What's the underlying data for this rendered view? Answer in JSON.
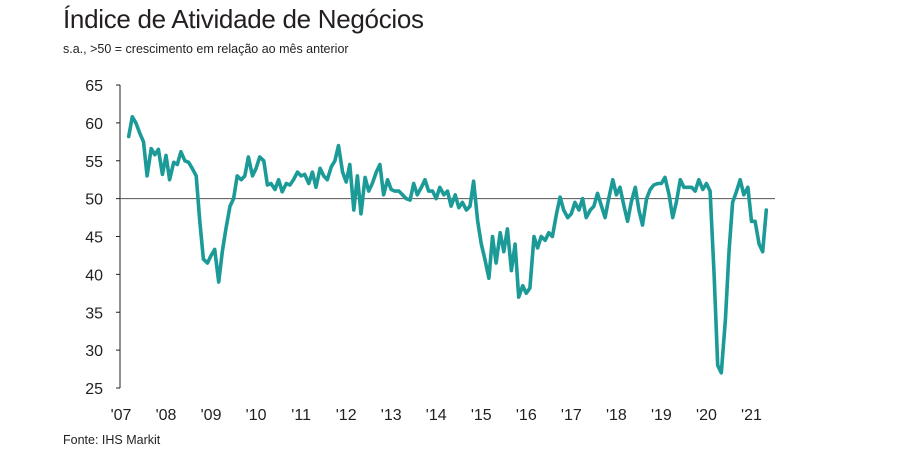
{
  "chart_data": {
    "type": "line",
    "title": "Índice de Atividade de Negócios",
    "subtitle": "s.a., >50 = crescimento em relação ao mês anterior",
    "source": "Fonte: IHS Markit",
    "xlabel": "",
    "ylabel": "",
    "ylim": [
      25,
      65
    ],
    "y_ticks": [
      {
        "value": 25,
        "label": "25"
      },
      {
        "value": 30,
        "label": "30"
      },
      {
        "value": 35,
        "label": "35"
      },
      {
        "value": 40,
        "label": "40"
      },
      {
        "value": 45,
        "label": "45"
      },
      {
        "value": 50,
        "label": "50"
      },
      {
        "value": 55,
        "label": "55"
      },
      {
        "value": 60,
        "label": "60"
      },
      {
        "value": 65,
        "label": "65"
      }
    ],
    "x_ticks": [
      {
        "value": 2007,
        "label": "'07"
      },
      {
        "value": 2008,
        "label": "'08"
      },
      {
        "value": 2009,
        "label": "'09"
      },
      {
        "value": 2010,
        "label": "'10"
      },
      {
        "value": 2011,
        "label": "'11"
      },
      {
        "value": 2012,
        "label": "'12"
      },
      {
        "value": 2013,
        "label": "'13"
      },
      {
        "value": 2014,
        "label": "'14"
      },
      {
        "value": 2015,
        "label": "'15"
      },
      {
        "value": 2016,
        "label": "'16"
      },
      {
        "value": 2017,
        "label": "'17"
      },
      {
        "value": 2018,
        "label": "'18"
      },
      {
        "value": 2019,
        "label": "'19"
      },
      {
        "value": 2020,
        "label": "'20"
      },
      {
        "value": 2021,
        "label": "'21"
      }
    ],
    "reference_line": 50,
    "line_color": "#1b9a97",
    "reference_color": "#555555",
    "series": [
      {
        "values": [
          [
            2007.17,
            58.2
          ],
          [
            2007.25,
            60.8
          ],
          [
            2007.33,
            60.0
          ],
          [
            2007.42,
            58.6
          ],
          [
            2007.5,
            57.5
          ],
          [
            2007.58,
            53.0
          ],
          [
            2007.67,
            56.6
          ],
          [
            2007.75,
            55.8
          ],
          [
            2007.83,
            56.5
          ],
          [
            2007.92,
            53.2
          ],
          [
            2008.0,
            55.7
          ],
          [
            2008.08,
            52.5
          ],
          [
            2008.17,
            54.8
          ],
          [
            2008.25,
            54.5
          ],
          [
            2008.33,
            56.2
          ],
          [
            2008.42,
            55.0
          ],
          [
            2008.5,
            54.8
          ],
          [
            2008.58,
            54.0
          ],
          [
            2008.67,
            53.0
          ],
          [
            2008.75,
            47.0
          ],
          [
            2008.83,
            42.0
          ],
          [
            2008.92,
            41.5
          ],
          [
            2009.0,
            42.5
          ],
          [
            2009.08,
            43.3
          ],
          [
            2009.17,
            39.0
          ],
          [
            2009.25,
            43.0
          ],
          [
            2009.33,
            46.0
          ],
          [
            2009.42,
            49.0
          ],
          [
            2009.5,
            50.0
          ],
          [
            2009.58,
            53.0
          ],
          [
            2009.67,
            52.5
          ],
          [
            2009.75,
            53.0
          ],
          [
            2009.83,
            55.5
          ],
          [
            2009.92,
            53.0
          ],
          [
            2010.0,
            54.0
          ],
          [
            2010.08,
            55.5
          ],
          [
            2010.17,
            55.0
          ],
          [
            2010.25,
            51.8
          ],
          [
            2010.33,
            52.0
          ],
          [
            2010.42,
            51.2
          ],
          [
            2010.5,
            52.5
          ],
          [
            2010.58,
            50.9
          ],
          [
            2010.67,
            52.0
          ],
          [
            2010.75,
            51.8
          ],
          [
            2010.83,
            52.5
          ],
          [
            2010.92,
            53.5
          ],
          [
            2011.0,
            53.0
          ],
          [
            2011.08,
            53.2
          ],
          [
            2011.17,
            52.0
          ],
          [
            2011.25,
            53.5
          ],
          [
            2011.33,
            51.5
          ],
          [
            2011.42,
            54.0
          ],
          [
            2011.5,
            53.0
          ],
          [
            2011.58,
            52.5
          ],
          [
            2011.67,
            54.2
          ],
          [
            2011.75,
            55.0
          ],
          [
            2011.83,
            57.0
          ],
          [
            2011.92,
            53.5
          ],
          [
            2012.0,
            52.2
          ],
          [
            2012.08,
            54.5
          ],
          [
            2012.17,
            48.5
          ],
          [
            2012.25,
            53.0
          ],
          [
            2012.33,
            48.0
          ],
          [
            2012.42,
            52.8
          ],
          [
            2012.5,
            51.0
          ],
          [
            2012.58,
            52.0
          ],
          [
            2012.67,
            53.5
          ],
          [
            2012.75,
            54.5
          ],
          [
            2012.83,
            50.5
          ],
          [
            2012.92,
            52.5
          ],
          [
            2013.0,
            51.2
          ],
          [
            2013.08,
            51.0
          ],
          [
            2013.17,
            51.0
          ],
          [
            2013.25,
            50.5
          ],
          [
            2013.33,
            50.0
          ],
          [
            2013.42,
            49.8
          ],
          [
            2013.5,
            52.0
          ],
          [
            2013.58,
            50.5
          ],
          [
            2013.67,
            51.5
          ],
          [
            2013.75,
            52.5
          ],
          [
            2013.83,
            51.0
          ],
          [
            2013.92,
            51.0
          ],
          [
            2014.0,
            50.0
          ],
          [
            2014.08,
            51.5
          ],
          [
            2014.17,
            50.5
          ],
          [
            2014.25,
            51.0
          ],
          [
            2014.33,
            49.0
          ],
          [
            2014.42,
            50.5
          ],
          [
            2014.5,
            48.8
          ],
          [
            2014.58,
            49.5
          ],
          [
            2014.67,
            48.5
          ],
          [
            2014.75,
            49.0
          ],
          [
            2014.83,
            52.3
          ],
          [
            2014.92,
            47.0
          ],
          [
            2015.0,
            44.0
          ],
          [
            2015.08,
            42.0
          ],
          [
            2015.17,
            39.5
          ],
          [
            2015.25,
            45.0
          ],
          [
            2015.33,
            41.5
          ],
          [
            2015.42,
            45.5
          ],
          [
            2015.5,
            43.0
          ],
          [
            2015.58,
            46.0
          ],
          [
            2015.67,
            40.5
          ],
          [
            2015.75,
            44.0
          ],
          [
            2015.83,
            37.0
          ],
          [
            2015.92,
            38.5
          ],
          [
            2016.0,
            37.5
          ],
          [
            2016.08,
            38.2
          ],
          [
            2016.17,
            45.0
          ],
          [
            2016.25,
            43.5
          ],
          [
            2016.33,
            45.0
          ],
          [
            2016.42,
            44.5
          ],
          [
            2016.5,
            45.5
          ],
          [
            2016.58,
            45.0
          ],
          [
            2016.67,
            48.0
          ],
          [
            2016.75,
            50.2
          ],
          [
            2016.83,
            48.5
          ],
          [
            2016.92,
            47.5
          ],
          [
            2017.0,
            48.0
          ],
          [
            2017.08,
            49.5
          ],
          [
            2017.17,
            48.5
          ],
          [
            2017.25,
            50.0
          ],
          [
            2017.33,
            47.5
          ],
          [
            2017.42,
            48.5
          ],
          [
            2017.5,
            49.0
          ],
          [
            2017.58,
            50.7
          ],
          [
            2017.67,
            49.0
          ],
          [
            2017.75,
            47.5
          ],
          [
            2017.83,
            50.0
          ],
          [
            2017.92,
            52.5
          ],
          [
            2018.0,
            50.5
          ],
          [
            2018.08,
            51.5
          ],
          [
            2018.17,
            49.0
          ],
          [
            2018.25,
            47.0
          ],
          [
            2018.33,
            49.5
          ],
          [
            2018.42,
            51.5
          ],
          [
            2018.5,
            48.5
          ],
          [
            2018.58,
            46.5
          ],
          [
            2018.67,
            50.0
          ],
          [
            2018.75,
            51.2
          ],
          [
            2018.83,
            51.8
          ],
          [
            2018.92,
            52.0
          ],
          [
            2019.0,
            52.0
          ],
          [
            2019.08,
            52.8
          ],
          [
            2019.17,
            50.5
          ],
          [
            2019.25,
            47.5
          ],
          [
            2019.33,
            49.5
          ],
          [
            2019.42,
            52.5
          ],
          [
            2019.5,
            51.5
          ],
          [
            2019.58,
            51.5
          ],
          [
            2019.67,
            51.5
          ],
          [
            2019.75,
            51.0
          ],
          [
            2019.83,
            52.5
          ],
          [
            2019.92,
            51.2
          ],
          [
            2020.0,
            52.0
          ],
          [
            2020.08,
            51.0
          ],
          [
            2020.17,
            40.0
          ],
          [
            2020.25,
            28.0
          ],
          [
            2020.33,
            27.0
          ],
          [
            2020.42,
            34.0
          ],
          [
            2020.5,
            43.0
          ],
          [
            2020.58,
            49.5
          ],
          [
            2020.67,
            51.0
          ],
          [
            2020.75,
            52.5
          ],
          [
            2020.83,
            50.5
          ],
          [
            2020.92,
            51.5
          ],
          [
            2021.0,
            47.0
          ],
          [
            2021.08,
            47.0
          ],
          [
            2021.17,
            44.0
          ],
          [
            2021.25,
            43.0
          ],
          [
            2021.33,
            48.5
          ]
        ]
      }
    ]
  }
}
